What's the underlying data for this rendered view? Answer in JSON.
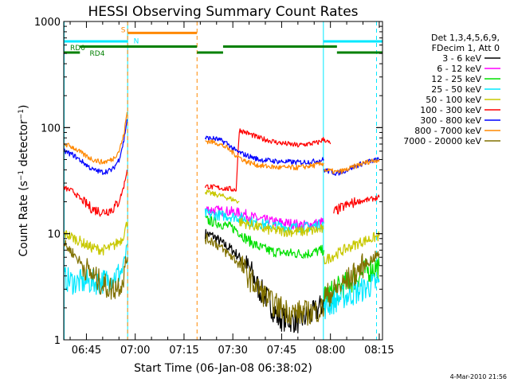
{
  "chart_data": {
    "type": "line",
    "title": "HESSI Observing Summary Count Rates",
    "xlabel": "Start Time (06-Jan-08 06:38:02)",
    "ylabel": "Count Rate (s⁻¹ detector⁻¹)",
    "footer": "4-Mar-2010 21:56",
    "y_scale": "log",
    "ylim": [
      1,
      1000
    ],
    "y_ticks": [
      "1",
      "10",
      "100",
      "1000"
    ],
    "xlim": [
      "06:38:02",
      "08:16:00"
    ],
    "x_ticks": [
      "06:45",
      "07:00",
      "07:15",
      "07:30",
      "07:45",
      "08:00",
      "08:15"
    ],
    "legend_header": [
      "Det 1,3,4,5,6,9,",
      "FDecim 1, Att 0"
    ],
    "legend": [
      {
        "label": "3 - 6 keV",
        "color": "#000000"
      },
      {
        "label": "6 - 12 keV",
        "color": "#ff00ff"
      },
      {
        "label": "12 - 25 keV",
        "color": "#00e000"
      },
      {
        "label": "25 - 50 keV",
        "color": "#00e8ff"
      },
      {
        "label": "50 - 100 keV",
        "color": "#c8c800"
      },
      {
        "label": "100 - 300 keV",
        "color": "#ff0000"
      },
      {
        "label": "300 - 800 keV",
        "color": "#0000ff"
      },
      {
        "label": "800 - 7000 keV",
        "color": "#ff8800"
      },
      {
        "label": "7000 - 20000 keV",
        "color": "#807000"
      }
    ],
    "flag_labels": {
      "S": "S",
      "N": "N",
      "RD0": "RD0",
      "RD4": "RD4"
    },
    "vertical_lines": [
      {
        "t": "06:38:10",
        "color": "#00e8ff",
        "style": "solid"
      },
      {
        "t": "06:57:40",
        "color": "#00e8ff",
        "style": "solid"
      },
      {
        "t": "06:57:40",
        "color": "#ff8800",
        "style": "dashed"
      },
      {
        "t": "07:19:00",
        "color": "#ff8800",
        "style": "dashed"
      },
      {
        "t": "07:57:50",
        "color": "#00e8ff",
        "style": "solid"
      },
      {
        "t": "08:14:10",
        "color": "#00e8ff",
        "style": "dashed"
      }
    ],
    "flags": [
      {
        "name": "S",
        "color": "#ff8800",
        "y": 780,
        "segments": [
          [
            "06:57:40",
            "07:19:00"
          ]
        ]
      },
      {
        "name": "N",
        "color": "#00e8ff",
        "y": 650,
        "segments": [
          [
            "06:38:02",
            "06:57:40"
          ],
          [
            "07:57:50",
            "08:16:00"
          ]
        ]
      },
      {
        "name": "RD0",
        "color": "#008000",
        "y": 510,
        "segments": [
          [
            "06:38:02",
            "06:43:00"
          ],
          [
            "07:19:00",
            "07:27:00"
          ],
          [
            "08:02:00",
            "08:16:00"
          ]
        ]
      },
      {
        "name": "RD4",
        "color": "#008000",
        "y": 580,
        "segments": [
          [
            "06:43:00",
            "07:19:00"
          ],
          [
            "07:27:00",
            "08:02:00"
          ]
        ]
      }
    ],
    "series": [
      {
        "name": "3 - 6 keV",
        "color": "#000000",
        "segments": [
          {
            "t": [
              "07:21:30",
              "07:24:00",
              "07:27:00",
              "07:30:00",
              "07:33:00",
              "07:36:00",
              "07:38:00",
              "07:40:00",
              "07:44:00",
              "07:50:00",
              "07:55:00",
              "07:58:00"
            ],
            "v": [
              10,
              9.5,
              8,
              7,
              5.5,
              4.2,
              3,
              2.6,
              1.6,
              1.5,
              1.8,
              2.2
            ]
          }
        ]
      },
      {
        "name": "6 - 12 keV",
        "color": "#ff00ff",
        "segments": [
          {
            "t": [
              "07:21:30",
              "07:25:00",
              "07:30:00",
              "07:33:00",
              "07:37:00",
              "07:42:00",
              "07:47:00",
              "07:52:00",
              "07:56:00",
              "07:58:00"
            ],
            "v": [
              17,
              16.5,
              16,
              15.5,
              14,
              13,
              12.5,
              12,
              12.5,
              13
            ]
          }
        ]
      },
      {
        "name": "12 - 25 keV",
        "color": "#00e000",
        "segments": [
          {
            "t": [
              "07:21:30",
              "07:26:00",
              "07:31:00",
              "07:34:00",
              "07:38:00",
              "07:42:00",
              "07:48:00",
              "07:53:00",
              "07:58:00"
            ],
            "v": [
              13.5,
              12.5,
              11,
              9,
              7.5,
              6.8,
              6.5,
              6.5,
              7
            ]
          },
          {
            "t": [
              "07:58:00",
              "08:02:00",
              "08:06:00",
              "08:10:00",
              "08:15:00"
            ],
            "v": [
              2.5,
              3,
              3.5,
              4.3,
              5
            ]
          }
        ]
      },
      {
        "name": "25 - 50 keV",
        "color": "#00e8ff",
        "segments": [
          {
            "t": [
              "06:38:10",
              "06:41:00",
              "06:45:00",
              "06:49:00",
              "06:53:00",
              "06:56:00",
              "06:57:40"
            ],
            "v": [
              3.8,
              3.5,
              3.5,
              3.5,
              3.8,
              4.5,
              8
            ]
          },
          {
            "t": [
              "07:21:30",
              "07:25:00",
              "07:30:00",
              "07:33:00",
              "07:37:00",
              "07:42:00",
              "07:47:00",
              "07:52:00",
              "07:56:00",
              "07:58:00"
            ],
            "v": [
              15.5,
              15,
              14.5,
              14,
              12.5,
              12,
              11.5,
              11.5,
              12,
              12.5
            ]
          },
          {
            "t": [
              "07:58:00",
              "08:03:00",
              "08:08:00",
              "08:12:00",
              "08:15:00"
            ],
            "v": [
              2,
              2.5,
              2.8,
              3.2,
              3.5
            ]
          }
        ]
      },
      {
        "name": "50 - 100 keV",
        "color": "#c8c800",
        "segments": [
          {
            "t": [
              "06:38:10",
              "06:40:00",
              "06:43:00",
              "06:46:00",
              "06:50:00",
              "06:53:00",
              "06:56:00",
              "06:57:40"
            ],
            "v": [
              10,
              9.5,
              8.5,
              7.5,
              7,
              7.5,
              9,
              13
            ]
          },
          {
            "t": [
              "07:21:30",
              "07:23:00",
              "07:26:00",
              "07:30:00",
              "07:32:00"
            ],
            "v": [
              25,
              24,
              23,
              21,
              20
            ]
          },
          {
            "t": [
              "07:32:00",
              "07:36:00",
              "07:40:00",
              "07:46:00",
              "07:52:00",
              "07:57:50"
            ],
            "v": [
              13,
              12,
              11,
              10.5,
              10.5,
              11
            ]
          },
          {
            "t": [
              "07:57:50",
              "08:02:00",
              "08:06:00",
              "08:10:00",
              "08:15:00"
            ],
            "v": [
              5.5,
              6.5,
              7.5,
              8.5,
              9.5
            ]
          }
        ]
      },
      {
        "name": "100 - 300 keV",
        "color": "#ff0000",
        "segments": [
          {
            "t": [
              "06:38:10",
              "06:41:00",
              "06:44:00",
              "06:47:00",
              "06:50:00",
              "06:53:00",
              "06:55:00",
              "06:56:30",
              "06:57:30"
            ],
            "v": [
              27,
              25,
              20,
              17,
              16,
              17,
              20,
              28,
              40
            ]
          },
          {
            "t": [
              "07:21:30",
              "07:26:00",
              "07:31:00",
              "07:32:00",
              "07:34:00",
              "07:38:00",
              "07:44:00",
              "07:50:00",
              "07:56:00",
              "07:58:00",
              "08:00:00"
            ],
            "v": [
              28,
              27,
              26,
              95,
              90,
              80,
              72,
              68,
              72,
              78,
              70
            ]
          },
          {
            "t": [
              "08:01:00",
              "08:04:00",
              "08:08:00",
              "08:12:00",
              "08:15:00"
            ],
            "v": [
              16,
              18,
              20,
              21,
              22
            ]
          }
        ]
      },
      {
        "name": "300 - 800 keV",
        "color": "#0000ff",
        "segments": [
          {
            "t": [
              "06:38:10",
              "06:41:00",
              "06:44:00",
              "06:47:00",
              "06:50:00",
              "06:53:00",
              "06:55:00",
              "06:56:30",
              "06:57:30"
            ],
            "v": [
              60,
              55,
              47,
              40,
              38,
              40,
              50,
              75,
              120
            ]
          },
          {
            "t": [
              "07:21:30",
              "07:25:00",
              "07:28:00",
              "07:31:00",
              "07:34:00",
              "07:38:00",
              "07:44:00",
              "07:50:00",
              "07:55:00",
              "07:58:00"
            ],
            "v": [
              80,
              78,
              72,
              60,
              55,
              50,
              48,
              47,
              48,
              50
            ]
          },
          {
            "t": [
              "07:58:00",
              "08:02:00",
              "08:05:00",
              "08:09:00",
              "08:12:00",
              "08:15:00"
            ],
            "v": [
              40,
              37,
              40,
              45,
              48,
              50
            ]
          }
        ]
      },
      {
        "name": "800 - 7000 keV",
        "color": "#ff8800",
        "segments": [
          {
            "t": [
              "06:38:10",
              "06:41:00",
              "06:44:00",
              "06:47:00",
              "06:50:00",
              "06:53:00",
              "06:55:00",
              "06:56:30",
              "06:57:30"
            ],
            "v": [
              70,
              65,
              56,
              50,
              47,
              50,
              60,
              85,
              140
            ]
          },
          {
            "t": [
              "07:21:30",
              "07:25:00",
              "07:28:00",
              "07:31:00",
              "07:34:00",
              "07:38:00",
              "07:44:00",
              "07:50:00",
              "07:55:00",
              "07:58:00"
            ],
            "v": [
              75,
              72,
              65,
              55,
              48,
              44,
              42,
              42,
              44,
              46
            ]
          },
          {
            "t": [
              "07:58:00",
              "08:02:00",
              "08:05:00",
              "08:09:00",
              "08:12:00",
              "08:15:00"
            ],
            "v": [
              40,
              38,
              40,
              45,
              48,
              50
            ]
          }
        ]
      },
      {
        "name": "7000 - 20000 keV",
        "color": "#807000",
        "segments": [
          {
            "t": [
              "06:38:10",
              "06:41:00",
              "06:44:00",
              "06:47:00",
              "06:50:00",
              "06:53:00",
              "06:56:00",
              "06:57:40"
            ],
            "v": [
              8,
              6.5,
              5,
              4,
              3.3,
              3,
              3.5,
              6
            ]
          },
          {
            "t": [
              "07:21:30",
              "07:24:00",
              "07:27:00",
              "07:30:00",
              "07:33:00",
              "07:36:00",
              "07:39:00",
              "07:42:00",
              "07:48:00",
              "07:54:00",
              "07:58:00"
            ],
            "v": [
              9,
              8.5,
              7,
              6,
              4.8,
              3.5,
              2.8,
              2.2,
              1.8,
              1.8,
              2
            ]
          },
          {
            "t": [
              "07:58:00",
              "08:02:00",
              "08:06:00",
              "08:10:00",
              "08:15:00"
            ],
            "v": [
              2.5,
              3,
              3.8,
              5,
              6.5
            ]
          }
        ]
      }
    ]
  }
}
